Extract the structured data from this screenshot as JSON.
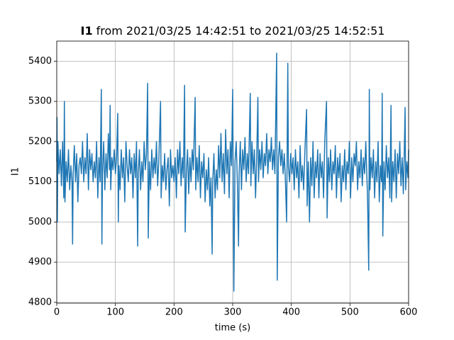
{
  "chart_data": {
    "type": "line",
    "title_prefix": "I1",
    "title": "from 2021/03/25 14:42:51 to 2021/03/25 14:52:51",
    "x_label": "time (s)",
    "y_label": "I1",
    "xlim": [
      0,
      600
    ],
    "xticks": [
      0,
      100,
      200,
      300,
      400,
      500,
      600
    ],
    "ylim": [
      4798,
      5450
    ],
    "yticks": [
      4800,
      4900,
      5000,
      5100,
      5200,
      5300,
      5400
    ],
    "grid": true,
    "series": [
      {
        "color": "#1f77b4",
        "x": [
          0,
          0.5,
          1,
          2,
          4,
          6,
          8,
          10,
          12,
          13,
          14,
          16,
          18,
          20,
          22,
          24,
          26,
          27,
          28,
          30,
          32,
          34,
          36,
          38,
          40,
          42,
          44,
          46,
          48,
          50,
          52,
          54,
          56,
          58,
          60,
          62,
          64,
          66,
          68,
          70,
          72,
          74,
          76,
          77,
          78,
          80,
          82,
          84,
          86,
          88,
          90,
          91,
          92,
          94,
          96,
          98,
          100,
          102,
          104,
          105,
          106,
          108,
          110,
          112,
          114,
          116,
          118,
          120,
          122,
          124,
          126,
          128,
          130,
          132,
          134,
          136,
          138,
          139,
          141,
          143,
          145,
          147,
          149,
          151,
          153,
          155,
          156,
          158,
          160,
          162,
          164,
          166,
          168,
          170,
          172,
          174,
          177,
          178,
          180,
          182,
          184,
          186,
          188,
          190,
          192,
          194,
          196,
          198,
          200,
          202,
          204,
          206,
          208,
          210,
          212,
          214,
          216,
          218,
          219,
          221,
          223,
          225,
          227,
          229,
          231,
          233,
          236,
          237,
          239,
          241,
          243,
          245,
          247,
          249,
          251,
          253,
          255,
          257,
          259,
          261,
          263,
          265,
          266,
          268,
          270,
          272,
          274,
          276,
          278,
          280,
          282,
          284,
          286,
          288,
          290,
          292,
          294,
          296,
          298,
          300,
          302,
          304,
          306,
          308,
          310,
          311,
          313,
          315,
          317,
          319,
          321,
          323,
          325,
          327,
          330,
          331,
          333,
          335,
          337,
          339,
          341,
          343,
          344,
          346,
          348,
          350,
          352,
          354,
          356,
          358,
          360,
          362,
          364,
          366,
          368,
          370,
          372,
          375,
          376,
          378,
          380,
          382,
          384,
          386,
          388,
          390,
          392,
          394,
          395,
          397,
          399,
          401,
          403,
          405,
          407,
          409,
          411,
          413,
          415,
          417,
          419,
          421,
          423,
          426,
          427,
          429,
          431,
          433,
          435,
          437,
          439,
          441,
          443,
          445,
          447,
          449,
          451,
          453,
          455,
          457,
          460,
          461,
          463,
          465,
          467,
          469,
          471,
          473,
          475,
          477,
          479,
          481,
          483,
          485,
          487,
          489,
          491,
          493,
          495,
          497,
          499,
          501,
          503,
          505,
          507,
          509,
          511,
          513,
          515,
          517,
          519,
          521,
          523,
          525,
          527,
          530,
          532,
          533,
          534,
          536,
          538,
          540,
          542,
          544,
          546,
          548,
          550,
          552,
          554,
          555,
          556,
          558,
          560,
          562,
          564,
          566,
          568,
          570,
          571,
          573,
          575,
          577,
          579,
          581,
          583,
          585,
          587,
          589,
          591,
          593,
          594,
          595,
          597,
          599,
          600
        ],
        "values": [
          5150,
          5260,
          5000,
          5200,
          5120,
          5180,
          5090,
          5200,
          5060,
          5300,
          5050,
          5150,
          5100,
          5180,
          5080,
          5140,
          5100,
          4945,
          5120,
          5190,
          5100,
          5170,
          5050,
          5140,
          5160,
          5120,
          5200,
          5100,
          5160,
          5120,
          5220,
          5080,
          5180,
          5130,
          5170,
          5100,
          5150,
          5110,
          5200,
          5060,
          5160,
          5100,
          5330,
          4945,
          5120,
          5200,
          5080,
          5170,
          5110,
          5220,
          5130,
          5290,
          5080,
          5160,
          5130,
          5180,
          5120,
          5160,
          5270,
          5000,
          5140,
          5080,
          5180,
          5110,
          5160,
          5050,
          5200,
          5140,
          5100,
          5180,
          5120,
          5160,
          5060,
          5170,
          5110,
          5200,
          4940,
          5120,
          5180,
          5080,
          5150,
          5100,
          5200,
          5130,
          5170,
          5345,
          4960,
          5150,
          5080,
          5180,
          5110,
          5160,
          5120,
          5200,
          5090,
          5150,
          5300,
          5060,
          5140,
          5100,
          5170,
          5080,
          5130,
          5160,
          5040,
          5180,
          5110,
          5140,
          5100,
          5160,
          5060,
          5180,
          5120,
          5200,
          5090,
          5160,
          5110,
          5340,
          4975,
          5120,
          5180,
          5070,
          5160,
          5100,
          5180,
          5130,
          5310,
          5080,
          5160,
          5100,
          5190,
          5060,
          5150,
          5110,
          5170,
          5050,
          5130,
          5080,
          5160,
          5040,
          5110,
          4920,
          5100,
          5170,
          5060,
          5130,
          5080,
          5190,
          5110,
          5220,
          5100,
          5170,
          5070,
          5230,
          5120,
          5180,
          5060,
          5200,
          5140,
          5330,
          4828,
          5150,
          5200,
          5100,
          4940,
          5120,
          5200,
          5080,
          5180,
          5130,
          5210,
          5100,
          5170,
          5120,
          5320,
          5090,
          5200,
          5120,
          5180,
          5060,
          5160,
          5310,
          5100,
          5180,
          5130,
          5200,
          5110,
          5170,
          5140,
          5220,
          5120,
          5180,
          5150,
          5210,
          5130,
          5180,
          5120,
          5420,
          4855,
          5160,
          5200,
          5140,
          5180,
          5120,
          5170,
          5100,
          5000,
          5395,
          5140,
          5100,
          5170,
          5120,
          5160,
          5080,
          5180,
          5110,
          5150,
          5060,
          5190,
          5100,
          5140,
          5080,
          5170,
          5280,
          5040,
          5150,
          5000,
          5160,
          5090,
          5200,
          5060,
          5150,
          5110,
          5180,
          5060,
          5170,
          5110,
          5150,
          5060,
          5200,
          5300,
          5010,
          5160,
          5100,
          5180,
          5080,
          5150,
          5120,
          5190,
          5060,
          5160,
          5110,
          5170,
          5050,
          5140,
          5100,
          5180,
          5080,
          5150,
          5120,
          5200,
          5060,
          5160,
          5100,
          5170,
          5140,
          5200,
          5080,
          5150,
          5110,
          5180,
          5090,
          5160,
          5120,
          5200,
          5060,
          4880,
          5330,
          5080,
          5160,
          5110,
          5180,
          5060,
          5150,
          5100,
          5200,
          5050,
          5140,
          5100,
          5320,
          4965,
          5150,
          5080,
          5190,
          5110,
          5160,
          5060,
          5290,
          5050,
          5150,
          5100,
          5180,
          5060,
          5170,
          5120,
          5200,
          5090,
          5160,
          5070,
          5200,
          5285,
          5080,
          5150,
          5110,
          5180
        ]
      }
    ]
  }
}
